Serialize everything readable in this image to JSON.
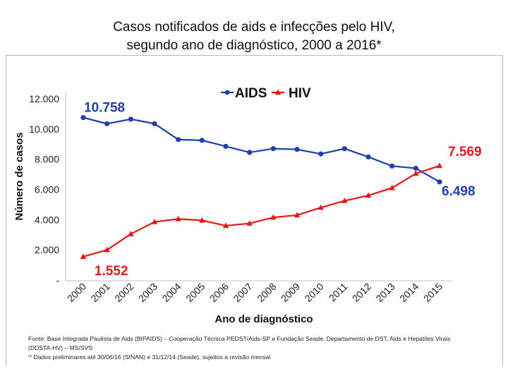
{
  "title_line1": "Casos notificados de aids e infecções pelo  HIV,",
  "title_line2": "segundo  ano de diagnóstico, 2000 a 2016*",
  "footnote": {
    "line1": "Fonte: Base Integrada Paulista de Aids (BIPAIDS) – Cooperação Técnica PEDST/Aids-SP e Fundação Seade, Departamento de DST, Aids e Hepatites Virais",
    "line2": "(DDSTA-HV) – MS/SVS",
    "line3": "'* Dados preliminares até 30/06/16 (SINAN) e 31/12/14 (Seade), sujeitos a revisão mensal"
  },
  "chart_data": {
    "type": "line",
    "xlabel": "Ano de diagnóstico",
    "ylabel": "Número de casos",
    "categories": [
      "2000",
      "2001",
      "2002",
      "2003",
      "2004",
      "2005",
      "2006",
      "2007",
      "2008",
      "2009",
      "2010",
      "2011",
      "2012",
      "2013",
      "2014",
      "2015"
    ],
    "y_ticks": [
      "-",
      "2.000",
      "4.000",
      "6.000",
      "8.000",
      "10.000",
      "12.000"
    ],
    "ylim": [
      0,
      12000
    ],
    "grid": false,
    "legend_position": "top-center",
    "series": [
      {
        "name": "AIDS",
        "color": "#1f3fb0",
        "marker": "circle",
        "values": [
          10758,
          10350,
          10650,
          10350,
          9300,
          9250,
          8850,
          8450,
          8700,
          8650,
          8350,
          8700,
          8150,
          7550,
          7400,
          6498
        ]
      },
      {
        "name": "HIV",
        "color": "#e01a1a",
        "marker": "triangle",
        "values": [
          1552,
          2000,
          3050,
          3850,
          4050,
          3950,
          3600,
          3750,
          4150,
          4300,
          4800,
          5250,
          5600,
          6100,
          7050,
          7569
        ]
      }
    ],
    "annotations": [
      {
        "text": "10.758",
        "series": "AIDS",
        "point": "first",
        "color": "#1f3fb0"
      },
      {
        "text": "6.498",
        "series": "AIDS",
        "point": "last",
        "color": "#1f3fb0"
      },
      {
        "text": "1.552",
        "series": "HIV",
        "point": "first",
        "color": "#e01a1a"
      },
      {
        "text": "7.569",
        "series": "HIV",
        "point": "last",
        "color": "#e01a1a"
      }
    ]
  }
}
